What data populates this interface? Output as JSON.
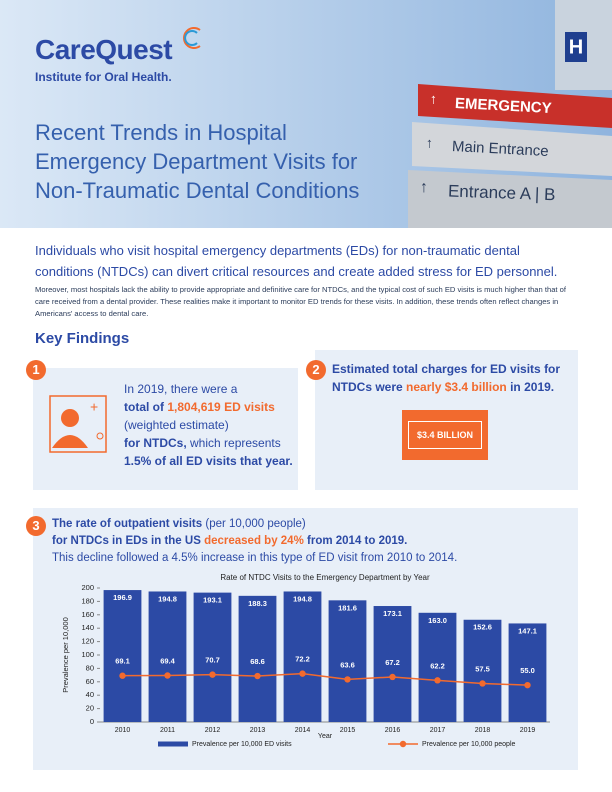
{
  "header": {
    "logo": "CareQuest",
    "logo_subtitle": "Institute for Oral Health.",
    "title_lines": [
      "Recent Trends in Hospital",
      "Emergency Department Visits for",
      "Non-Traumatic Dental Conditions"
    ],
    "signs": [
      "EMERGENCY",
      "Main Entrance",
      "Entrance A | B",
      "H"
    ]
  },
  "intro": {
    "lead": "Individuals who visit hospital emergency departments (EDs) for non-traumatic dental conditions (NTDCs) can divert critical resources and create added stress for ED personnel.",
    "body": "Moreover, most hospitals lack the ability to provide appropriate and definitive care for NTDCs, and the typical cost of such ED visits is much higher than that of care received from a dental provider. These realities make it important to monitor ED trends for these visits. In addition, these trends often reflect changes in Americans' access to dental care."
  },
  "key_findings": {
    "heading": "Key Findings",
    "items": [
      {
        "number": "1",
        "text": [
          "In 2019, there were a",
          "total of",
          "1,804,619 ED visits",
          "(weighted estimate)",
          "for NTDCs,",
          "which represents",
          "1.5% of all ED visits that year."
        ]
      },
      {
        "number": "2",
        "text": [
          "Estimated total charges for ED visits for",
          "NTDCs were",
          "nearly $3.4 billion",
          "in 2019."
        ],
        "badge": "$3.4 BILLION"
      },
      {
        "number": "3",
        "text": [
          "The rate of outpatient visits",
          "(per 10,000 people)",
          "for NTDCs in EDs in the US",
          "decreased by 24%",
          "from 2014 to 2019.",
          "This decline followed a 4.5% increase in this type of ED visit from 2010 to 2014."
        ]
      }
    ]
  },
  "chart_data": {
    "type": "bar",
    "title": "Rate of NTDC Visits to the Emergency Department by Year",
    "x_label": "Year",
    "y_label": "Prevalence per 10,000",
    "categories": [
      "2010",
      "2011",
      "2012",
      "2013",
      "2014",
      "2015",
      "2016",
      "2017",
      "2018",
      "2019"
    ],
    "series": [
      {
        "name": "Prevalence per 10,000 ED visits",
        "type": "bar",
        "color": "#2c4aa5",
        "values": [
          196.9,
          194.8,
          193.1,
          188.3,
          194.8,
          181.6,
          173.1,
          163.0,
          152.6,
          147.1
        ],
        "value_labels": [
          "196.9",
          "194.8",
          "193.1",
          "188.3",
          "194.8",
          "181.6",
          "173.1",
          "163.0",
          "152.6",
          "147.1"
        ]
      },
      {
        "name": "Prevalence per 10,000 people",
        "type": "line",
        "color": "#f26a2e",
        "values": [
          69.1,
          69.4,
          70.7,
          68.6,
          72.2,
          63.6,
          67.2,
          62.2,
          57.5,
          55.0
        ],
        "value_labels": [
          "69.1",
          "69.4",
          "70.7",
          "68.6",
          "72.2",
          "63.6",
          "67.2",
          "62.2",
          "57.5",
          "55.0"
        ]
      }
    ],
    "ylim": [
      0,
      200
    ],
    "yticks": [
      0,
      20,
      40,
      60,
      80,
      100,
      120,
      140,
      160,
      180,
      200
    ],
    "grid": false
  }
}
